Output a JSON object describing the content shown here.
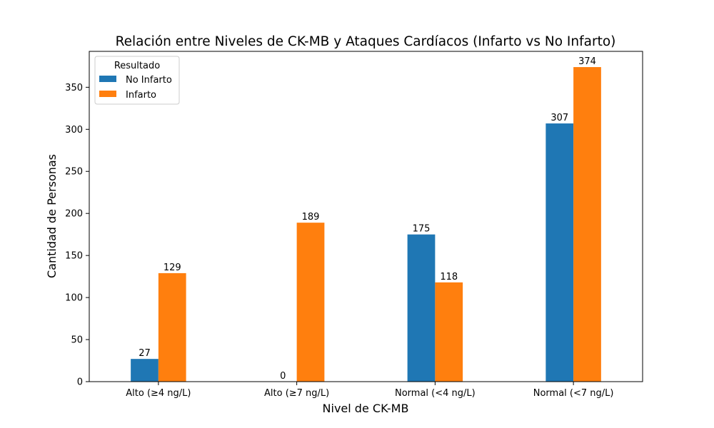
{
  "chart_data": {
    "type": "bar",
    "title": "Relación entre Niveles de CK-MB y Ataques Cardíacos (Infarto vs No Infarto)",
    "xlabel": "Nivel de CK-MB",
    "ylabel": "Cantidad de Personas",
    "categories": [
      "Alto (≥4 ng/L)",
      "Alto (≥7 ng/L)",
      "Normal (<4 ng/L)",
      "Normal (<7 ng/L)"
    ],
    "series": [
      {
        "name": "No Infarto",
        "color": "#1f77b4",
        "values": [
          27,
          0,
          175,
          307
        ]
      },
      {
        "name": "Infarto",
        "color": "#ff7f0e",
        "values": [
          129,
          189,
          118,
          374
        ]
      }
    ],
    "ylim": [
      0,
      392.7
    ],
    "yticks": [
      0,
      50,
      100,
      150,
      200,
      250,
      300,
      350
    ],
    "grid": false,
    "legend": {
      "title": "Resultado",
      "placement": "top-left"
    }
  }
}
